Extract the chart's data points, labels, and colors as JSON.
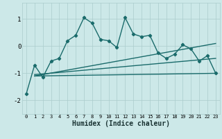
{
  "title": "",
  "xlabel": "Humidex (Indice chaleur)",
  "background_color": "#cce8e8",
  "line_color": "#1a6b6b",
  "xlim": [
    -0.5,
    23.5
  ],
  "ylim": [
    -2.5,
    1.6
  ],
  "yticks": [
    -2,
    -1,
    0,
    1
  ],
  "xticks": [
    0,
    1,
    2,
    3,
    4,
    5,
    6,
    7,
    8,
    9,
    10,
    11,
    12,
    13,
    14,
    15,
    16,
    17,
    18,
    19,
    20,
    21,
    22,
    23
  ],
  "main_x": [
    0,
    1,
    2,
    3,
    4,
    5,
    6,
    7,
    8,
    9,
    10,
    11,
    12,
    13,
    14,
    15,
    16,
    17,
    18,
    19,
    20,
    21,
    22,
    23
  ],
  "main_y": [
    -1.75,
    -0.7,
    -1.15,
    -0.55,
    -0.45,
    0.2,
    0.4,
    1.05,
    0.85,
    0.25,
    0.2,
    -0.05,
    1.05,
    0.45,
    0.35,
    0.4,
    -0.25,
    -0.45,
    -0.3,
    0.05,
    -0.1,
    -0.55,
    -0.35,
    -1.0
  ],
  "trend1_x": [
    1,
    23
  ],
  "trend1_y": [
    -1.1,
    0.1
  ],
  "trend2_x": [
    1,
    23
  ],
  "trend2_y": [
    -1.05,
    -0.45
  ],
  "trend3_x": [
    1,
    23
  ],
  "trend3_y": [
    -1.1,
    -1.0
  ],
  "grid_color": "#aacccc",
  "spine_color": "#aacccc"
}
